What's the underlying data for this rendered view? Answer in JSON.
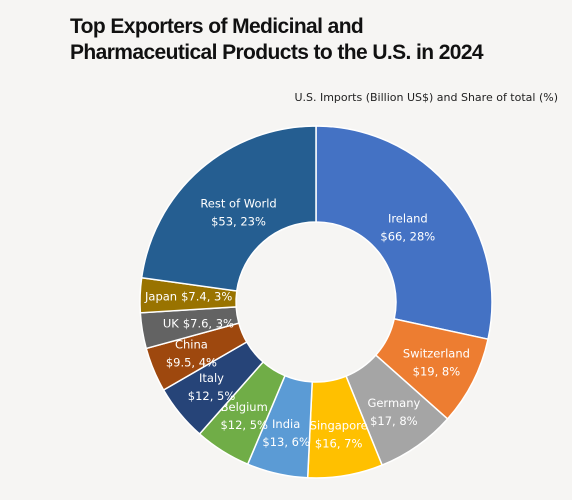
{
  "chart_data": {
    "type": "donut",
    "title": "Top Exporters of Medicinal and Pharmaceutical Products to the U.S. in 2024",
    "subtitle": "U.S. Imports (Billion US$) and Share of total (%)",
    "categories": [
      "Ireland",
      "Switzerland",
      "Germany",
      "Singapore",
      "India",
      "Belgium",
      "Italy",
      "China",
      "UK",
      "Japan",
      "Rest of World"
    ],
    "values": [
      66,
      19,
      17,
      16,
      13,
      12,
      12,
      9.5,
      7.6,
      7.4,
      53
    ],
    "value_labels": [
      "$66, 28%",
      "$19, 8%",
      "$17, 8%",
      "$16, 7%",
      "$13, 6%",
      "$12, 5%",
      "$12, 5%",
      "$9.5, 4%",
      "$7.6, 3%",
      "$7.4, 3%",
      "$53, 23%"
    ],
    "colors": [
      "#4472c4",
      "#ed7d31",
      "#a5a5a5",
      "#ffc000",
      "#5b9bd5",
      "#70ad47",
      "#264478",
      "#9e480e",
      "#636363",
      "#997300",
      "#255e91"
    ]
  }
}
